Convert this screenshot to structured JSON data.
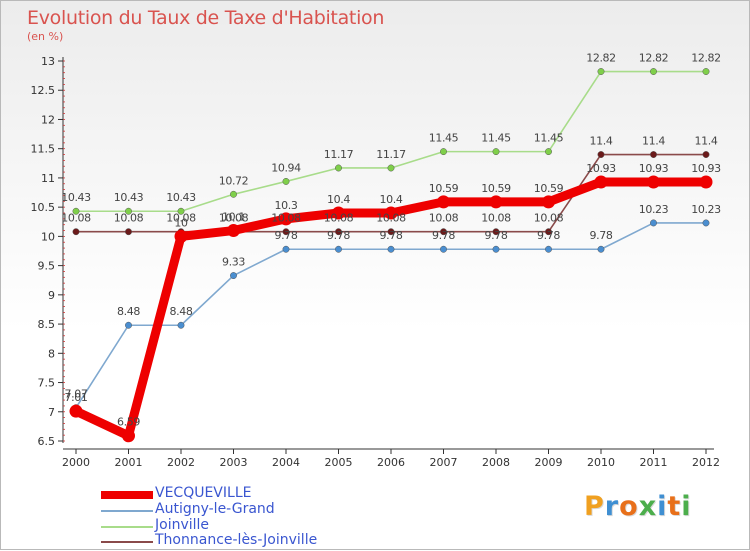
{
  "title": "Evolution du Taux de Taxe d'Habitation",
  "unit_label": "(en %)",
  "logo": {
    "text": "Proxiti",
    "letters": [
      {
        "ch": "P",
        "color": "#f0a020"
      },
      {
        "ch": "r",
        "color": "#3f8fd2"
      },
      {
        "ch": "o",
        "color": "#e8701a"
      },
      {
        "ch": "x",
        "color": "#4cae4c"
      },
      {
        "ch": "i",
        "color": "#3f8fd2"
      },
      {
        "ch": "t",
        "color": "#e8701a"
      },
      {
        "ch": "i",
        "color": "#4cae4c"
      }
    ]
  },
  "chart_data": {
    "type": "line",
    "title": "Evolution du Taux de Taxe d'Habitation",
    "ylabel": "(en %)",
    "xlabel": "",
    "x": [
      "2000",
      "2001",
      "2002",
      "2003",
      "2004",
      "2005",
      "2006",
      "2007",
      "2008",
      "2009",
      "2010",
      "2011",
      "2012"
    ],
    "ylim": [
      6.5,
      13
    ],
    "yticks": [
      "6.5",
      "7",
      "7.5",
      "8",
      "8.5",
      "9",
      "9.5",
      "10",
      "10.5",
      "11",
      "11.5",
      "12",
      "12.5",
      "13"
    ],
    "series": [
      {
        "name": "VECQUEVILLE",
        "color": "#ee0000",
        "values": [
          7.01,
          6.59,
          10.0,
          10.1,
          10.3,
          10.4,
          10.4,
          10.59,
          10.59,
          10.59,
          10.93,
          10.93,
          10.93
        ],
        "labels": [
          "7.01",
          "6.59",
          "10",
          "10.1",
          "10.3",
          "10.4",
          "10.4",
          "10.59",
          "10.59",
          "10.59",
          "10.93",
          "10.93",
          "10.93"
        ]
      },
      {
        "name": "Autigny-le-Grand",
        "color": "#7fa8cf",
        "values": [
          7.07,
          8.48,
          8.48,
          9.33,
          9.78,
          9.78,
          9.78,
          9.78,
          9.78,
          9.78,
          9.78,
          10.23,
          10.23
        ],
        "labels": [
          "7.07",
          "8.48",
          "8.48",
          "9.33",
          "9.78",
          "9.78",
          "9.78",
          "9.78",
          "9.78",
          "9.78",
          "9.78",
          "10.23",
          "10.23"
        ]
      },
      {
        "name": "Joinville",
        "color": "#a8dc8a",
        "values": [
          10.43,
          10.43,
          10.43,
          10.72,
          10.94,
          11.17,
          11.17,
          11.45,
          11.45,
          11.45,
          12.82,
          12.82,
          12.82
        ],
        "labels": [
          "10.43",
          "10.43",
          "10.43",
          "10.72",
          "10.94",
          "11.17",
          "11.17",
          "11.45",
          "11.45",
          "11.45",
          "12.82",
          "12.82",
          "12.82"
        ]
      },
      {
        "name": "Thonnance-lès-Joinville",
        "color": "#8a4a4a",
        "values": [
          10.08,
          10.08,
          10.08,
          10.08,
          10.08,
          10.08,
          10.08,
          10.08,
          10.08,
          10.08,
          11.4,
          11.4,
          11.4
        ],
        "labels": [
          "10.08",
          "10.08",
          "10.08",
          "10.08",
          "10.08",
          "10.08",
          "10.08",
          "10.08",
          "10.08",
          "10.08",
          "11.4",
          "11.4",
          "11.4"
        ]
      }
    ],
    "legend_position": "bottom-left",
    "grid": false
  }
}
